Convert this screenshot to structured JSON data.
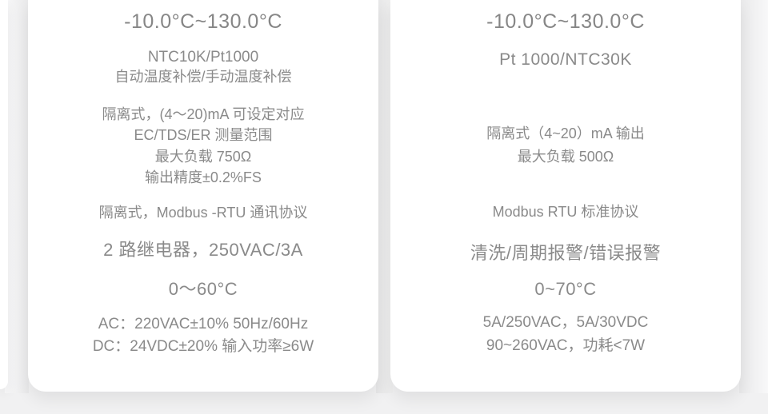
{
  "page": {
    "background_color": "#f1f1f2",
    "card_color": "#ffffff",
    "text_color": "#8a8a8a"
  },
  "left_card": {
    "temp_range": "-10.0°C~130.0°C",
    "sensor_line1": "NTC10K/Pt1000",
    "sensor_line2": "自动温度补偿/手动温度补偿",
    "output_line1": "隔离式，(4～20)mA 可设定对应",
    "output_line2": "EC/TDS/ER 测量范围",
    "output_line3": "最大负载 750Ω",
    "output_line4": "输出精度±0.2%FS",
    "comm_protocol": "隔离式，Modbus -RTU 通讯协议",
    "relay": "2 路继电器，250VAC/3A",
    "ambient_temp": "0～60°C",
    "power_line1": "AC：220VAC±10% 50Hz/60Hz",
    "power_line2": "DC：24VDC±20% 输入功率≥6W"
  },
  "right_card": {
    "temp_range": "-10.0°C~130.0°C",
    "sensor": "Pt 1000/NTC30K",
    "output_line1": "隔离式（4~20）mA 输出",
    "output_line2": "最大负载 500Ω",
    "comm_protocol": "Modbus RTU 标准协议",
    "alarm": "清洗/周期报警/错误报警",
    "ambient_temp": "0~70°C",
    "power_line1": "5A/250VAC，5A/30VDC",
    "power_line2": "90~260VAC，功耗<7W"
  }
}
